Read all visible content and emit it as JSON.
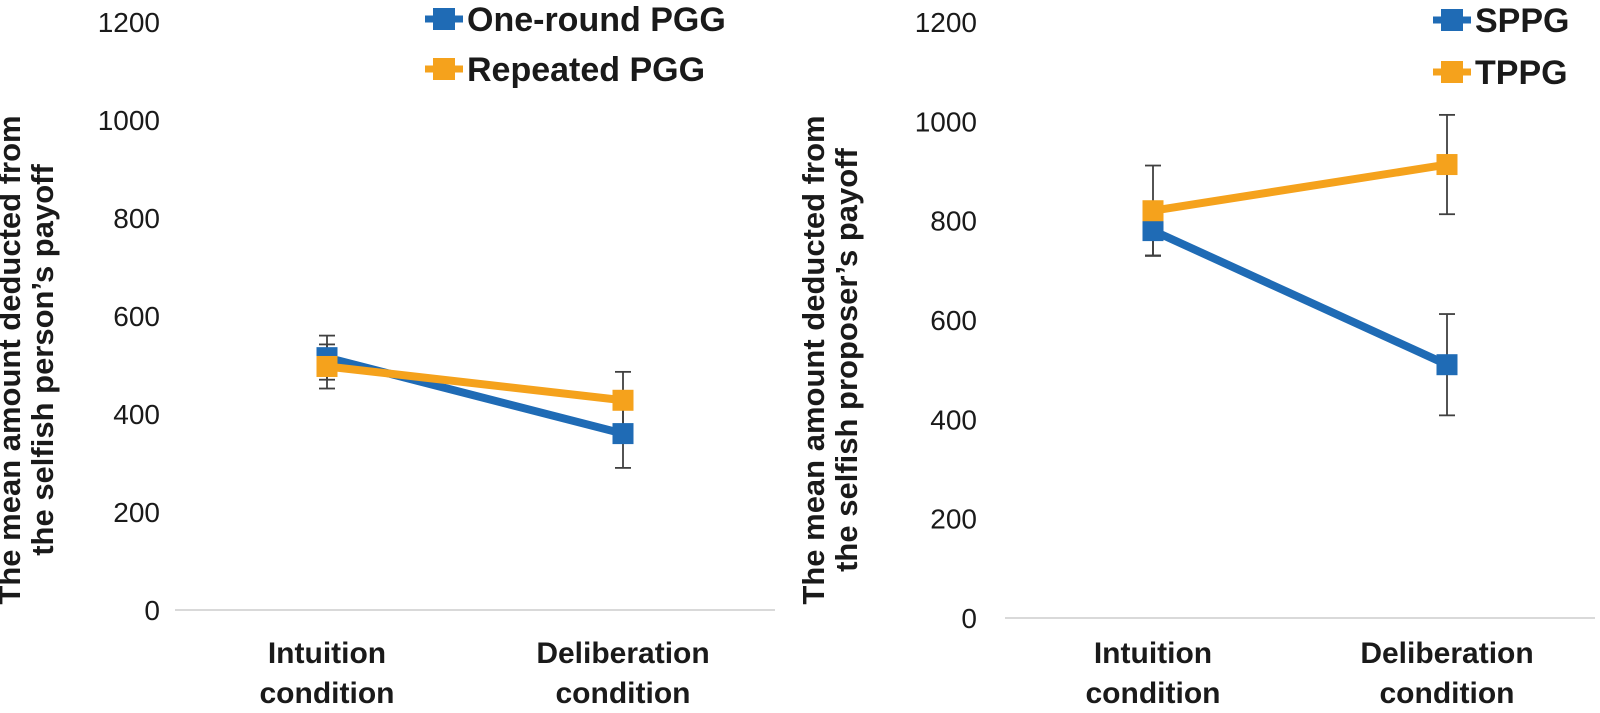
{
  "figure": {
    "background": "#ffffff",
    "colors": {
      "blue": "#1F6BB5",
      "orange": "#F5A21C",
      "axis_line": "#D9D9D9",
      "error_bar": "#404040",
      "text": "#1A1A1A"
    }
  },
  "chart_data": [
    {
      "id": "selfish-person-payoff",
      "type": "line",
      "title": "",
      "ylabel_lines": [
        "The mean amount deducted from",
        "the selfish person’s payoff"
      ],
      "categories": [
        [
          "Intuition",
          "condition"
        ],
        [
          "Deliberation",
          "condition"
        ]
      ],
      "ylim": [
        0,
        1200
      ],
      "yticks": [
        0,
        200,
        400,
        600,
        800,
        1000,
        1200
      ],
      "grid": false,
      "legend_position": "top-right",
      "marker_shape": "square",
      "series": [
        {
          "name": "One-round PGG",
          "color": "blue",
          "values": [
            515,
            360
          ],
          "errors": [
            45,
            70
          ]
        },
        {
          "name": "Repeated PGG",
          "color": "orange",
          "values": [
            497,
            428
          ],
          "errors": [
            45,
            58
          ]
        }
      ]
    },
    {
      "id": "selfish-proposer-payoff",
      "type": "line",
      "title": "",
      "ylabel_lines": [
        "The mean amount deducted from",
        "the selfish proposer’s payoff"
      ],
      "categories": [
        [
          "Intuition",
          "condition"
        ],
        [
          "Deliberation",
          "condition"
        ]
      ],
      "ylim": [
        0,
        1200
      ],
      "yticks": [
        0,
        200,
        400,
        600,
        800,
        1000,
        1200
      ],
      "grid": false,
      "legend_position": "top-right",
      "marker_shape": "square",
      "series": [
        {
          "name": "SPPG",
          "color": "blue",
          "values": [
            780,
            510
          ],
          "errors": [
            50,
            102
          ]
        },
        {
          "name": "TPPG",
          "color": "orange",
          "values": [
            820,
            913
          ],
          "errors": [
            91,
            100
          ]
        }
      ]
    }
  ]
}
